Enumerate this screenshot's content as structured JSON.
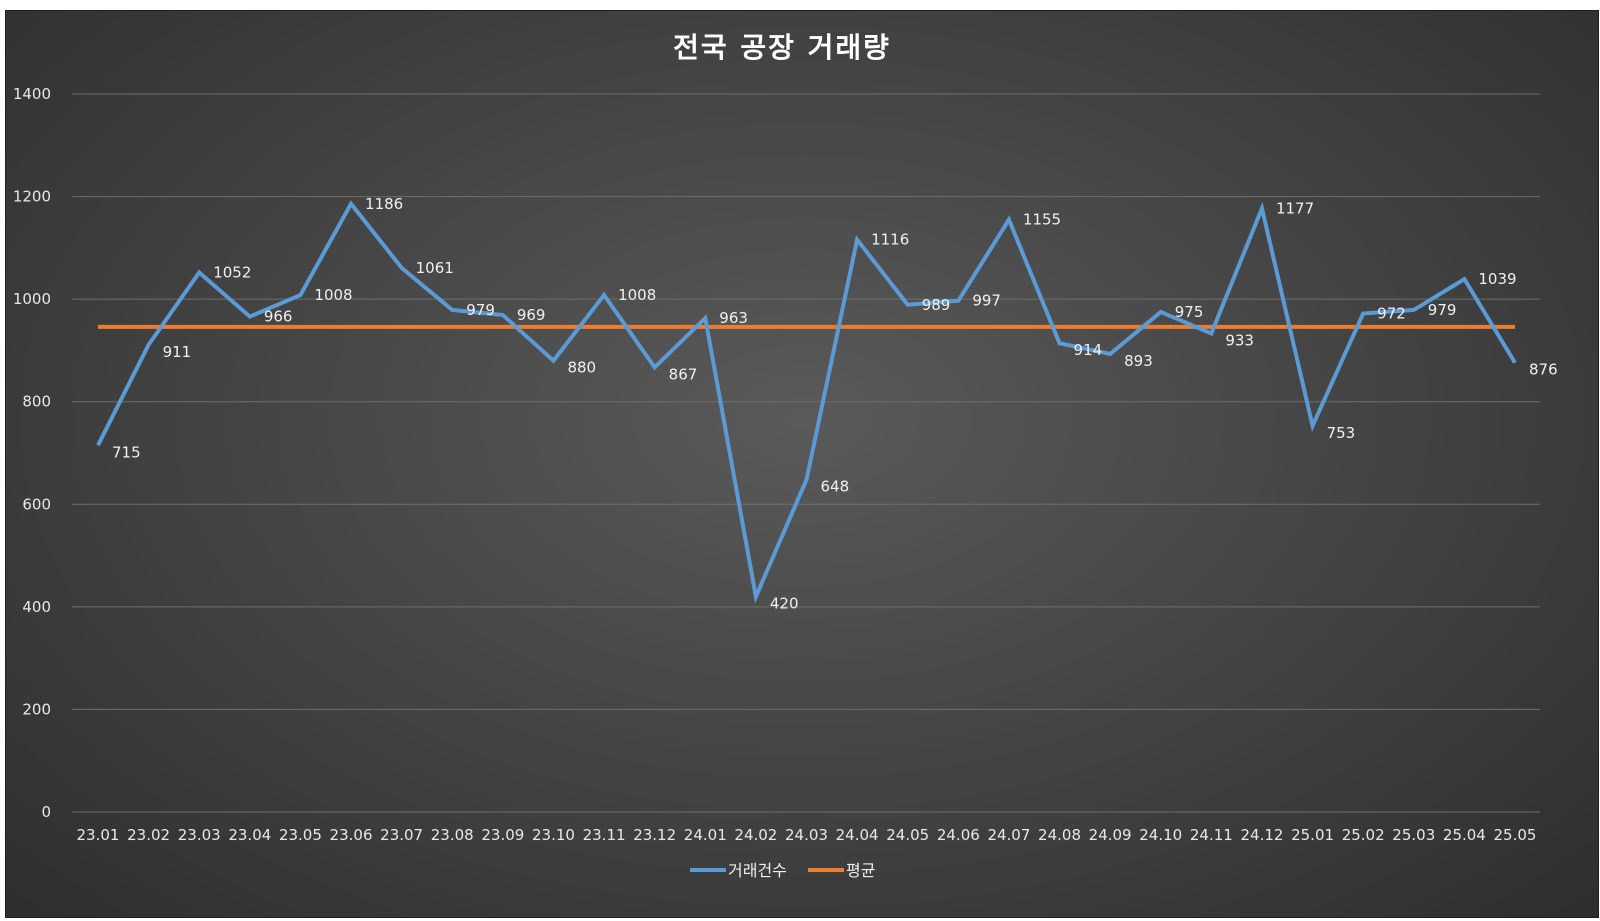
{
  "chart_data": {
    "type": "line",
    "title": "전국 공장 거래량",
    "categories": [
      "23.01",
      "23.02",
      "23.03",
      "23.04",
      "23.05",
      "23.06",
      "23.07",
      "23.08",
      "23.09",
      "23.10",
      "23.11",
      "23.12",
      "24.01",
      "24.02",
      "24.03",
      "24.04",
      "24.05",
      "24.06",
      "24.07",
      "24.08",
      "24.09",
      "24.10",
      "24.11",
      "24.12",
      "25.01",
      "25.02",
      "25.03",
      "25.04",
      "25.05"
    ],
    "series": [
      {
        "name": "거래건수",
        "color": "#5b9bd5",
        "values": [
          715,
          911,
          1052,
          966,
          1008,
          1186,
          1061,
          979,
          969,
          880,
          1008,
          867,
          963,
          420,
          648,
          1116,
          989,
          997,
          1155,
          914,
          893,
          975,
          933,
          1177,
          753,
          972,
          979,
          1039,
          876
        ],
        "data_labels": true
      },
      {
        "name": "평균",
        "color": "#ed7d31",
        "values": [
          946,
          946,
          946,
          946,
          946,
          946,
          946,
          946,
          946,
          946,
          946,
          946,
          946,
          946,
          946,
          946,
          946,
          946,
          946,
          946,
          946,
          946,
          946,
          946,
          946,
          946,
          946,
          946,
          946
        ],
        "data_labels": false
      }
    ],
    "ylim": [
      0,
      1400
    ],
    "yticks": [
      0,
      200,
      400,
      600,
      800,
      1000,
      1200,
      1400
    ],
    "grid": true,
    "legend": "bottom",
    "xlabel": "",
    "ylabel": ""
  }
}
